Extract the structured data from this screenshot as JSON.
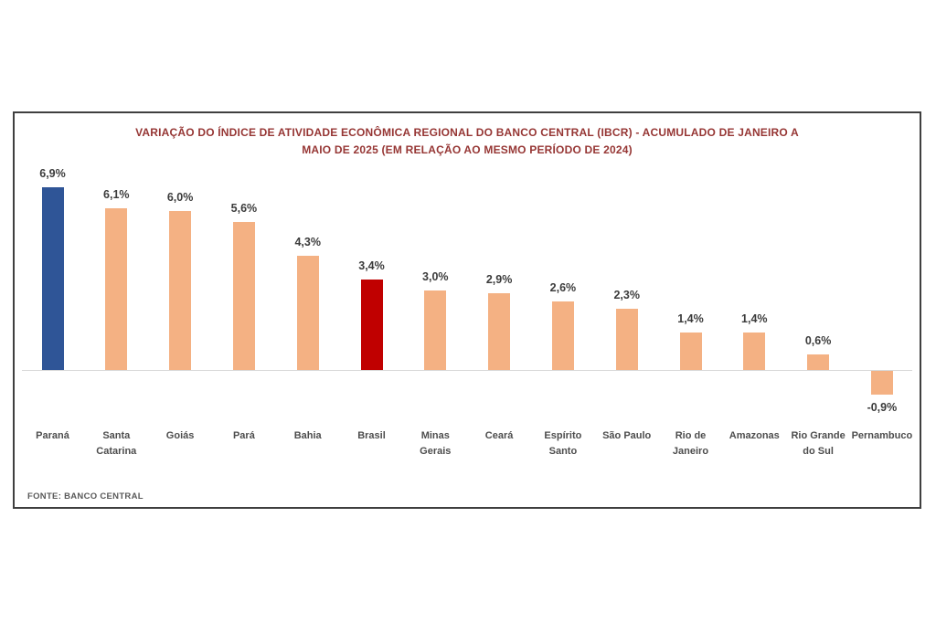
{
  "chart_data": {
    "type": "bar",
    "title": "VARIAÇÃO DO ÍNDICE DE ATIVIDADE ECONÔMICA REGIONAL DO BANCO CENTRAL (IBCR) - ACUMULADO DE JANEIRO A MAIO DE 2025 (EM RELAÇÃO AO MESMO PERÍODO DE 2024)",
    "title_lines": [
      "VARIAÇÃO DO ÍNDICE DE ATIVIDADE ECONÔMICA REGIONAL DO BANCO CENTRAL (IBCR) - ACUMULADO DE JANEIRO A",
      "MAIO DE 2025 (EM RELAÇÃO AO MESMO PERÍODO DE 2024)"
    ],
    "xlabel": "",
    "ylabel": "",
    "unit": "%",
    "ylim": [
      -1.5,
      7.5
    ],
    "grid": false,
    "legend": null,
    "categories": [
      "Paraná",
      "Santa Catarina",
      "Goiás",
      "Pará",
      "Bahia",
      "Brasil",
      "Minas Gerais",
      "Ceará",
      "Espírito Santo",
      "São Paulo",
      "Rio de Janeiro",
      "Amazonas",
      "Rio Grande do Sul",
      "Pernambuco"
    ],
    "values": [
      6.9,
      6.1,
      6.0,
      5.6,
      4.3,
      3.4,
      3.0,
      2.9,
      2.6,
      2.3,
      1.4,
      1.4,
      0.6,
      -0.9
    ],
    "bars": [
      {
        "name": "Paraná",
        "label_lines": [
          "Paraná"
        ],
        "value": 6.9,
        "value_label": "6,9%",
        "color": "#2F5597"
      },
      {
        "name": "Santa Catarina",
        "label_lines": [
          "Santa",
          "Catarina"
        ],
        "value": 6.1,
        "value_label": "6,1%",
        "color": "#F4B183"
      },
      {
        "name": "Goiás",
        "label_lines": [
          "Goiás"
        ],
        "value": 6.0,
        "value_label": "6,0%",
        "color": "#F4B183"
      },
      {
        "name": "Pará",
        "label_lines": [
          "Pará"
        ],
        "value": 5.6,
        "value_label": "5,6%",
        "color": "#F4B183"
      },
      {
        "name": "Bahia",
        "label_lines": [
          "Bahia"
        ],
        "value": 4.3,
        "value_label": "4,3%",
        "color": "#F4B183"
      },
      {
        "name": "Brasil",
        "label_lines": [
          "Brasil"
        ],
        "value": 3.4,
        "value_label": "3,4%",
        "color": "#C00000"
      },
      {
        "name": "Minas Gerais",
        "label_lines": [
          "Minas",
          "Gerais"
        ],
        "value": 3.0,
        "value_label": "3,0%",
        "color": "#F4B183"
      },
      {
        "name": "Ceará",
        "label_lines": [
          "Ceará"
        ],
        "value": 2.9,
        "value_label": "2,9%",
        "color": "#F4B183"
      },
      {
        "name": "Espírito Santo",
        "label_lines": [
          "Espírito",
          "Santo"
        ],
        "value": 2.6,
        "value_label": "2,6%",
        "color": "#F4B183"
      },
      {
        "name": "São Paulo",
        "label_lines": [
          "São Paulo"
        ],
        "value": 2.3,
        "value_label": "2,3%",
        "color": "#F4B183"
      },
      {
        "name": "Rio de Janeiro",
        "label_lines": [
          "Rio de",
          "Janeiro"
        ],
        "value": 1.4,
        "value_label": "1,4%",
        "color": "#F4B183"
      },
      {
        "name": "Amazonas",
        "label_lines": [
          "Amazonas"
        ],
        "value": 1.4,
        "value_label": "1,4%",
        "color": "#F4B183"
      },
      {
        "name": "Rio Grande do Sul",
        "label_lines": [
          "Rio Grande",
          "do Sul"
        ],
        "value": 0.6,
        "value_label": "0,6%",
        "color": "#F4B183"
      },
      {
        "name": "Pernambuco",
        "label_lines": [
          "Pernambuco"
        ],
        "value": -0.9,
        "value_label": "-0,9%",
        "color": "#F4B183"
      }
    ],
    "source": "FONTE: BANCO CENTRAL",
    "colors": {
      "bar_default": "#F4B183",
      "bar_parana": "#2F5597",
      "bar_brasil": "#C00000",
      "title": "#963634",
      "value_label": "#3B3B3B",
      "category_label": "#4D4D4D",
      "axis_line": "#D8D8D8",
      "frame_border": "#3F3F3F",
      "source_text": "#595959"
    }
  }
}
